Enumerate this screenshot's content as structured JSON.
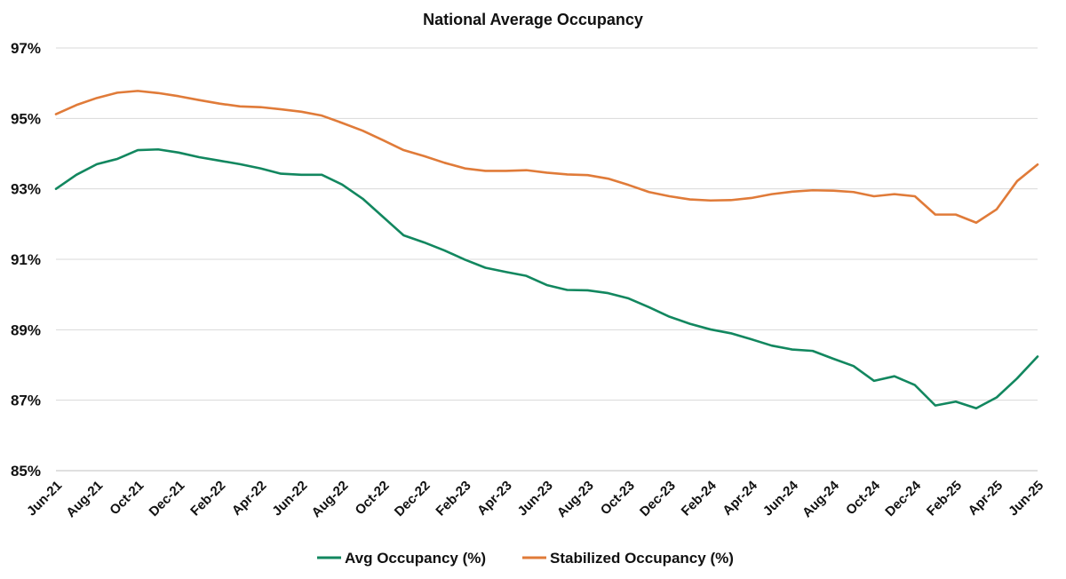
{
  "chart_data": {
    "type": "line",
    "title": "National Average Occupancy",
    "xlabel": "",
    "ylabel": "",
    "ylim": [
      85,
      97
    ],
    "yticks": [
      85,
      87,
      89,
      91,
      93,
      95,
      97
    ],
    "ytick_labels": [
      "85%",
      "87%",
      "89%",
      "91%",
      "93%",
      "95%",
      "97%"
    ],
    "grid": true,
    "legend_position": "bottom",
    "x": [
      "Jun-21",
      "Jul-21",
      "Aug-21",
      "Sep-21",
      "Oct-21",
      "Nov-21",
      "Dec-21",
      "Jan-22",
      "Feb-22",
      "Mar-22",
      "Apr-22",
      "May-22",
      "Jun-22",
      "Jul-22",
      "Aug-22",
      "Sep-22",
      "Oct-22",
      "Nov-22",
      "Dec-22",
      "Jan-23",
      "Feb-23",
      "Mar-23",
      "Apr-23",
      "May-23",
      "Jun-23",
      "Jul-23",
      "Aug-23",
      "Sep-23",
      "Oct-23",
      "Nov-23",
      "Dec-23",
      "Jan-24",
      "Feb-24",
      "Mar-24",
      "Apr-24",
      "May-24",
      "Jun-24",
      "Jul-24",
      "Aug-24",
      "Sep-24",
      "Oct-24",
      "Nov-24",
      "Dec-24",
      "Jan-25",
      "Feb-25",
      "Mar-25",
      "Apr-25",
      "May-25",
      "Jun-25"
    ],
    "x_tick_labels": [
      "Jun-21",
      "Aug-21",
      "Oct-21",
      "Dec-21",
      "Feb-22",
      "Apr-22",
      "Jun-22",
      "Aug-22",
      "Oct-22",
      "Dec-22",
      "Feb-23",
      "Apr-23",
      "Jun-23",
      "Aug-23",
      "Oct-23",
      "Dec-23",
      "Feb-24",
      "Apr-24",
      "Jun-24",
      "Aug-24",
      "Oct-24",
      "Dec-24",
      "Feb-25",
      "Apr-25",
      "Jun-25"
    ],
    "series": [
      {
        "name": "Avg Occupancy (%)",
        "color": "#12875f",
        "values": [
          93.0,
          93.4,
          93.7,
          93.85,
          94.1,
          94.12,
          94.03,
          93.9,
          93.8,
          93.7,
          93.58,
          93.43,
          93.4,
          93.4,
          93.12,
          92.72,
          92.2,
          91.68,
          91.48,
          91.25,
          90.99,
          90.76,
          90.64,
          90.53,
          90.27,
          90.13,
          90.12,
          90.04,
          89.89,
          89.64,
          89.37,
          89.17,
          89.01,
          88.9,
          88.73,
          88.55,
          88.44,
          88.4,
          88.18,
          87.97,
          87.55,
          87.68,
          87.43,
          86.85,
          86.96,
          86.77,
          87.08,
          87.62,
          88.24
        ]
      },
      {
        "name": "Stabilized Occupancy (%)",
        "color": "#e07b39",
        "values": [
          95.12,
          95.38,
          95.58,
          95.73,
          95.78,
          95.72,
          95.63,
          95.52,
          95.42,
          95.34,
          95.32,
          95.26,
          95.19,
          95.08,
          94.87,
          94.65,
          94.38,
          94.1,
          93.93,
          93.74,
          93.58,
          93.51,
          93.51,
          93.53,
          93.46,
          93.41,
          93.39,
          93.29,
          93.11,
          92.91,
          92.79,
          92.7,
          92.67,
          92.68,
          92.74,
          92.85,
          92.92,
          92.96,
          92.95,
          92.91,
          92.79,
          92.85,
          92.79,
          92.27,
          92.27,
          92.04,
          92.42,
          93.22,
          93.69
        ]
      }
    ]
  }
}
